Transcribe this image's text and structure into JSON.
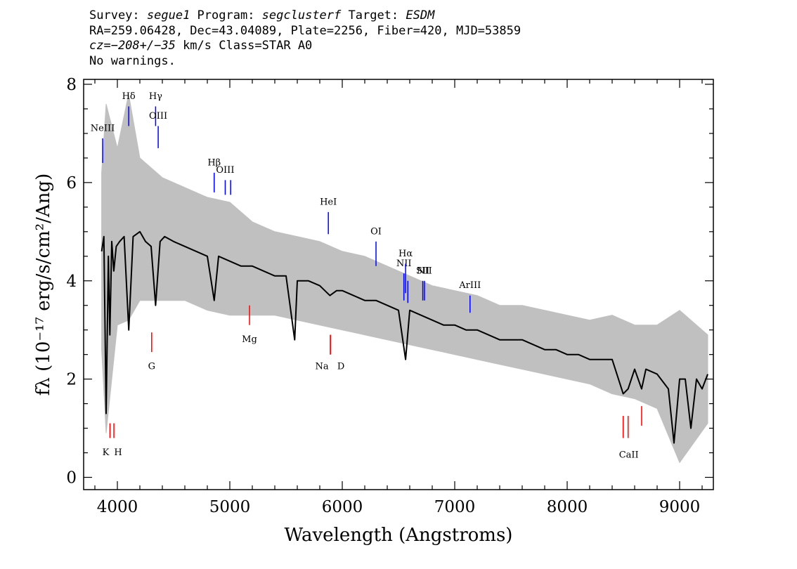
{
  "header": {
    "line1": {
      "survey_label": "Survey: ",
      "survey": "segue1",
      "program_label": " Program: ",
      "program": "segclusterf",
      "target_label": " Target: ",
      "target": "ESDM"
    },
    "line2": "RA=259.06428, Dec=43.04089, Plate=2256, Fiber=420, MJD=53859",
    "line3": {
      "cz": "cz=−208+/−35",
      "rest": " km/s Class=STAR A0"
    },
    "line4": "No warnings."
  },
  "chart_data": {
    "type": "line",
    "xlabel": "Wavelength (Angstroms)",
    "ylabel": "fλ (10⁻¹⁷ erg/s/cm²/Ang)",
    "xlim": [
      3700,
      9300
    ],
    "ylim": [
      -0.25,
      8.1
    ],
    "x_ticks": [
      4000,
      5000,
      6000,
      7000,
      8000,
      9000
    ],
    "y_ticks": [
      0,
      2,
      4,
      6,
      8
    ],
    "grid": false,
    "series": [
      {
        "role": "flux (black)",
        "color": "#000000",
        "x": [
          3860,
          3880,
          3900,
          3920,
          3933,
          3950,
          3968,
          3990,
          4020,
          4060,
          4101,
          4140,
          4200,
          4250,
          4300,
          4340,
          4380,
          4420,
          4500,
          4600,
          4700,
          4800,
          4861,
          4900,
          5000,
          5100,
          5200,
          5300,
          5400,
          5500,
          5577,
          5600,
          5700,
          5800,
          5890,
          5950,
          6000,
          6100,
          6200,
          6300,
          6400,
          6500,
          6563,
          6600,
          6700,
          6800,
          6900,
          7000,
          7100,
          7200,
          7300,
          7400,
          7500,
          7600,
          7700,
          7800,
          7900,
          8000,
          8100,
          8200,
          8300,
          8400,
          8498,
          8542,
          8600,
          8662,
          8700,
          8800,
          8900,
          8950,
          9000,
          9050,
          9100,
          9150,
          9200,
          9250
        ],
        "y": [
          4.6,
          4.9,
          1.3,
          4.5,
          2.9,
          4.8,
          4.2,
          4.7,
          4.8,
          4.9,
          3.0,
          4.9,
          5.0,
          4.8,
          4.7,
          3.5,
          4.8,
          4.9,
          4.8,
          4.7,
          4.6,
          4.5,
          3.6,
          4.5,
          4.4,
          4.3,
          4.3,
          4.2,
          4.1,
          4.1,
          2.8,
          4.0,
          4.0,
          3.9,
          3.7,
          3.8,
          3.8,
          3.7,
          3.6,
          3.6,
          3.5,
          3.4,
          2.4,
          3.4,
          3.3,
          3.2,
          3.1,
          3.1,
          3.0,
          3.0,
          2.9,
          2.8,
          2.8,
          2.8,
          2.7,
          2.6,
          2.6,
          2.5,
          2.5,
          2.4,
          2.4,
          2.4,
          1.7,
          1.8,
          2.2,
          1.8,
          2.2,
          2.1,
          1.8,
          0.7,
          2.0,
          2.0,
          1.0,
          2.0,
          1.8,
          2.1
        ]
      },
      {
        "role": "noise envelope (gray)",
        "color": "#c0c0c0",
        "x": [
          3860,
          3900,
          4000,
          4100,
          4200,
          4400,
          4600,
          4800,
          5000,
          5200,
          5400,
          5600,
          5800,
          6000,
          6200,
          6400,
          6600,
          6800,
          7000,
          7200,
          7400,
          7600,
          7800,
          8000,
          8200,
          8400,
          8600,
          8800,
          9000,
          9250
        ],
        "y_high": [
          6.2,
          7.6,
          6.7,
          7.8,
          6.5,
          6.1,
          5.9,
          5.7,
          5.6,
          5.2,
          5.0,
          4.9,
          4.8,
          4.6,
          4.5,
          4.3,
          4.1,
          3.9,
          3.8,
          3.7,
          3.5,
          3.5,
          3.4,
          3.3,
          3.2,
          3.3,
          3.1,
          3.1,
          3.4,
          2.9
        ],
        "y_low": [
          2.6,
          0.9,
          3.1,
          3.2,
          3.6,
          3.6,
          3.6,
          3.4,
          3.3,
          3.3,
          3.3,
          3.2,
          3.1,
          3.0,
          2.9,
          2.8,
          2.7,
          2.6,
          2.5,
          2.4,
          2.3,
          2.2,
          2.1,
          2.0,
          1.9,
          1.7,
          1.6,
          1.4,
          0.3,
          1.1
        ]
      }
    ],
    "emission_lines": [
      {
        "label": "NeIII",
        "wave": 3869,
        "y0": 6.4,
        "y1": 6.9,
        "label_y": 7.05
      },
      {
        "label": "Hδ",
        "wave": 4101,
        "y0": 7.15,
        "y1": 7.55,
        "label_y": 7.7
      },
      {
        "label": "Hγ",
        "wave": 4340,
        "y0": 7.15,
        "y1": 7.55,
        "label_y": 7.7
      },
      {
        "label": "OIII",
        "wave": 4363,
        "y0": 6.7,
        "y1": 7.15,
        "label_y": 7.3
      },
      {
        "label": "Hβ",
        "wave": 4861,
        "y0": 5.8,
        "y1": 6.2,
        "label_y": 6.35
      },
      {
        "label": "OIII",
        "wave": 4959,
        "y0": 5.75,
        "y1": 6.05,
        "label_y": 6.2
      },
      {
        "label": "",
        "wave": 5007,
        "y0": 5.75,
        "y1": 6.05,
        "label_y": 6.2
      },
      {
        "label": "HeI",
        "wave": 5876,
        "y0": 4.95,
        "y1": 5.4,
        "label_y": 5.55
      },
      {
        "label": "OI",
        "wave": 6300,
        "y0": 4.3,
        "y1": 4.8,
        "label_y": 4.95
      },
      {
        "label": "NII",
        "wave": 6548,
        "y0": 3.6,
        "y1": 4.15,
        "label_y": 4.3
      },
      {
        "label": "Hα",
        "wave": 6563,
        "y0": 3.75,
        "y1": 4.35,
        "label_y": 4.5
      },
      {
        "label": "",
        "wave": 6583,
        "y0": 3.55,
        "y1": 4.0,
        "label_y": 4.15
      },
      {
        "label": "SII",
        "wave": 6716,
        "y0": 3.6,
        "y1": 4.0,
        "label_y": 4.15
      },
      {
        "label": "NII",
        "wave": 6731,
        "y0": 3.6,
        "y1": 4.0,
        "label_y": 4.15
      },
      {
        "label": "ArIII",
        "wave": 7136,
        "y0": 3.35,
        "y1": 3.7,
        "label_y": 3.85
      }
    ],
    "absorption_lines": [
      {
        "label": "K",
        "wave": 3934,
        "y0": 0.8,
        "y1": 1.1,
        "label_y": 0.45
      },
      {
        "label": "H",
        "wave": 3969,
        "y0": 0.8,
        "y1": 1.1,
        "label_y": 0.45
      },
      {
        "label": "G",
        "wave": 4305,
        "y0": 2.55,
        "y1": 2.95,
        "label_y": 2.2
      },
      {
        "label": "Mg",
        "wave": 5175,
        "y0": 3.1,
        "y1": 3.5,
        "label_y": 2.75
      },
      {
        "label": "Na",
        "wave": 5894,
        "y0": 2.5,
        "y1": 2.9,
        "label_y": 2.2
      },
      {
        "label": "D",
        "wave": 5894,
        "y0": 2.5,
        "y1": 2.9,
        "label_y": 2.2
      },
      {
        "label": "CaII",
        "wave": 8498,
        "y0": 0.8,
        "y1": 1.25,
        "label_y": 0.4
      },
      {
        "label": "",
        "wave": 8542,
        "y0": 0.8,
        "y1": 1.25,
        "label_y": 0.4
      },
      {
        "label": "",
        "wave": 8662,
        "y0": 1.05,
        "y1": 1.45,
        "label_y": 0.4
      }
    ],
    "line_colors": {
      "emission": "#0000ff",
      "absorption": "#ff0000"
    }
  }
}
